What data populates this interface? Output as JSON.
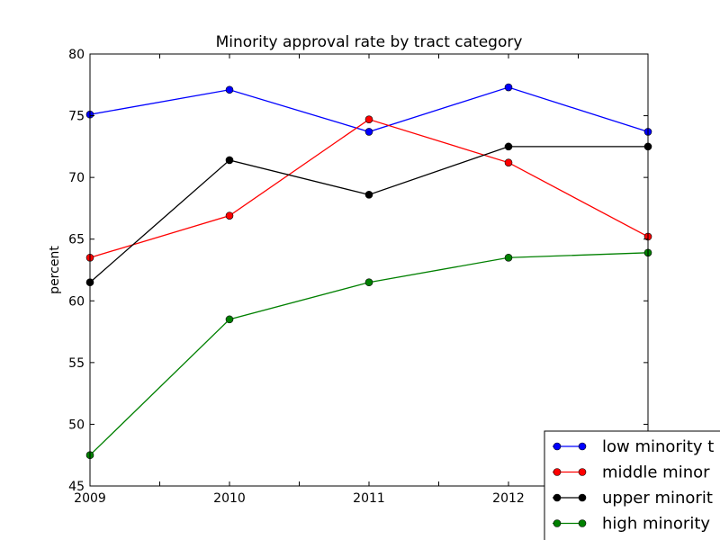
{
  "chart_data": {
    "type": "line",
    "title": "Minority approval rate by tract category",
    "xlabel": "",
    "ylabel": "percent",
    "x": [
      2009,
      2010,
      2011,
      2012,
      2013
    ],
    "x_tick_labels": [
      "2009",
      "2010",
      "2011",
      "2012"
    ],
    "xlim": [
      2009,
      2013
    ],
    "ylim": [
      45,
      80
    ],
    "y_ticks": [
      45,
      50,
      55,
      60,
      65,
      70,
      75,
      80
    ],
    "grid": false,
    "legend_position": "lower-right",
    "series": [
      {
        "name": "low minority",
        "legend_text": "low minority t",
        "color": "#0000ff",
        "values": [
          75.1,
          77.1,
          73.7,
          77.3,
          73.7
        ]
      },
      {
        "name": "middle minority",
        "legend_text": "middle minor",
        "color": "#ff0000",
        "values": [
          63.5,
          66.9,
          74.7,
          71.2,
          65.2
        ]
      },
      {
        "name": "upper minority",
        "legend_text": "upper minorit",
        "color": "#000000",
        "values": [
          61.5,
          71.4,
          68.6,
          72.5,
          72.5
        ]
      },
      {
        "name": "high minority",
        "legend_text": "high minority",
        "color": "#008000",
        "values": [
          47.5,
          58.5,
          61.5,
          63.5,
          63.9
        ]
      }
    ]
  }
}
